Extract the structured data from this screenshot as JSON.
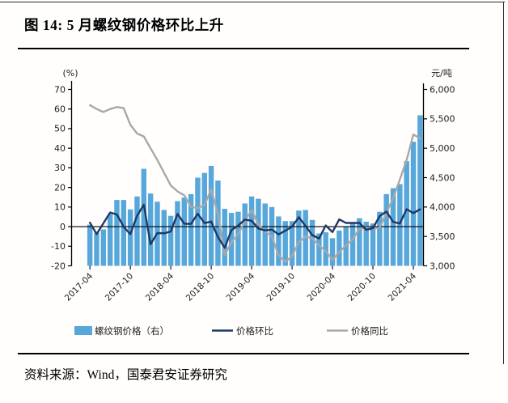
{
  "page": {
    "title": "图 14: 5 月螺纹钢价格环比上升",
    "source": "资料来源：Wind，国泰君安证券研究"
  },
  "chart_data": {
    "type": "bar",
    "title": "",
    "grid": false,
    "legend_position": "bottom",
    "x": [
      "2017-04",
      "2017-05",
      "2017-06",
      "2017-07",
      "2017-08",
      "2017-09",
      "2017-10",
      "2017-11",
      "2017-12",
      "2018-01",
      "2018-02",
      "2018-03",
      "2018-04",
      "2018-05",
      "2018-06",
      "2018-07",
      "2018-08",
      "2018-09",
      "2018-10",
      "2018-11",
      "2018-12",
      "2019-01",
      "2019-02",
      "2019-03",
      "2019-04",
      "2019-05",
      "2019-06",
      "2019-07",
      "2019-08",
      "2019-09",
      "2019-10",
      "2019-11",
      "2019-12",
      "2020-01",
      "2020-02",
      "2020-03",
      "2020-04",
      "2020-05",
      "2020-06",
      "2020-07",
      "2020-08",
      "2020-09",
      "2020-10",
      "2020-11",
      "2020-12",
      "2021-01",
      "2021-02",
      "2021-03",
      "2021-04",
      "2021-05"
    ],
    "x_tick_labels": [
      "2017-04",
      "2017-10",
      "2018-04",
      "2018-10",
      "2019-04",
      "2019-10",
      "2020-04",
      "2020-10",
      "2021-04"
    ],
    "left_axis": {
      "label": "(%)",
      "min": -20,
      "max": 70,
      "ticks": [
        70,
        60,
        50,
        40,
        30,
        20,
        10,
        0,
        -10,
        -20
      ]
    },
    "right_axis": {
      "label": "元/吨",
      "min": 3000,
      "max": 6000,
      "ticks": [
        6000,
        5500,
        5000,
        4500,
        4000,
        3500,
        3000
      ],
      "tick_labels": [
        "6,000",
        "5,500",
        "5,000",
        "4,500",
        "4,000",
        "3,500",
        "3,000"
      ]
    },
    "series": [
      {
        "name": "螺纹钢价格（右）",
        "kind": "bar",
        "axis": "right",
        "color": "#58A7DB",
        "values": [
          3700,
          3560,
          3620,
          3880,
          4120,
          4120,
          3960,
          4180,
          4650,
          4230,
          4090,
          3950,
          3850,
          4100,
          4160,
          4220,
          4500,
          4580,
          4700,
          4450,
          3970,
          3900,
          3920,
          4060,
          4180,
          4140,
          4060,
          4000,
          3840,
          3760,
          3760,
          3940,
          3950,
          3780,
          3550,
          3570,
          3470,
          3600,
          3670,
          3740,
          3810,
          3750,
          3720,
          3920,
          4220,
          4320,
          4390,
          4780,
          5110,
          5560
        ]
      },
      {
        "name": "价格环比",
        "kind": "line",
        "axis": "left",
        "color": "#1F3864",
        "values": [
          2.0,
          -3.8,
          1.7,
          7.2,
          6.2,
          0.0,
          -3.9,
          5.6,
          11.2,
          -9.0,
          -3.3,
          -3.4,
          -2.5,
          6.5,
          1.5,
          1.4,
          6.6,
          1.8,
          2.6,
          -5.3,
          -10.8,
          -1.8,
          0.5,
          3.6,
          3.0,
          -1.0,
          -1.9,
          -1.5,
          -4.0,
          -2.1,
          0.0,
          4.8,
          0.3,
          -4.3,
          -6.1,
          0.6,
          -2.8,
          3.7,
          1.9,
          1.9,
          1.9,
          -1.6,
          -0.8,
          5.4,
          7.7,
          2.4,
          1.6,
          8.9,
          6.9,
          8.8
        ]
      },
      {
        "name": "价格同比",
        "kind": "line",
        "axis": "left",
        "color": "#A8A8A8",
        "values": [
          62,
          60,
          58.5,
          60,
          61,
          60.5,
          52,
          47.5,
          46,
          40,
          34,
          27.5,
          21,
          18,
          16,
          10,
          9.5,
          11,
          19,
          6.5,
          -14.5,
          -8,
          -4,
          3,
          8.5,
          1,
          -2.5,
          -5,
          -14.5,
          -18,
          -15,
          -8,
          -5,
          -6,
          -9.5,
          -12.5,
          -17,
          -13,
          -9.5,
          -6.5,
          -1,
          -0.5,
          -1,
          -0.5,
          7,
          14.5,
          24,
          34,
          47,
          45
        ]
      }
    ]
  }
}
